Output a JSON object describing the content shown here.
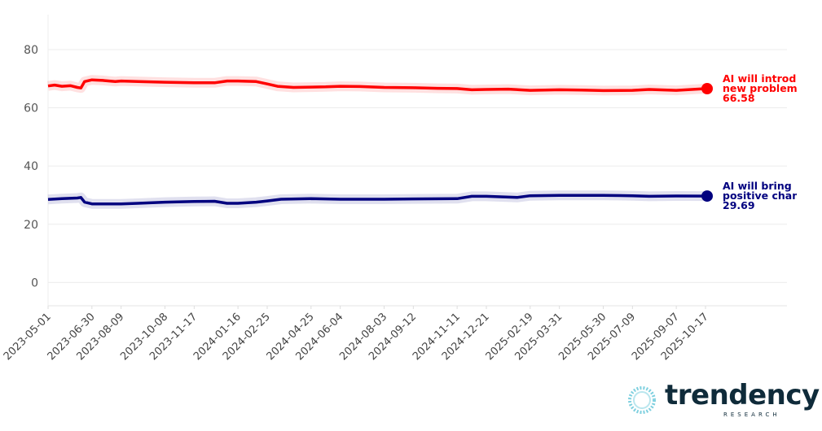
{
  "chart_data": {
    "type": "line",
    "title": "",
    "xlabel": "",
    "ylabel": "",
    "ylim": [
      -8,
      92
    ],
    "yticks": [
      0,
      20,
      40,
      60,
      80
    ],
    "x_tick_labels": [
      "2023-05-01",
      "2023-06-30",
      "2023-08-09",
      "2023-10-08",
      "2023-11-17",
      "2024-01-16",
      "2024-02-25",
      "2024-04-25",
      "2024-06-04",
      "2024-08-03",
      "2024-09-12",
      "2024-11-11",
      "2024-12-21",
      "2025-02-19",
      "2025-03-31",
      "2025-05-30",
      "2025-07-09",
      "2025-09-07",
      "2025-10-17"
    ],
    "x_range": [
      "2023-05-01",
      "2025-10-17"
    ],
    "grid": true,
    "legend": "end-of-line labels",
    "series": [
      {
        "name": "AI will introduce new problems",
        "label_lines": [
          "AI will introdu",
          "new problems"
        ],
        "final_value_label": "66.58",
        "final_value": 66.58,
        "color": "#ff0000",
        "points": [
          [
            "2023-05-01",
            67.5
          ],
          [
            "2023-05-10",
            67.8
          ],
          [
            "2023-05-20",
            67.4
          ],
          [
            "2023-06-01",
            67.6
          ],
          [
            "2023-06-10",
            67.0
          ],
          [
            "2023-06-15",
            66.8
          ],
          [
            "2023-06-20",
            69.0
          ],
          [
            "2023-06-30",
            69.6
          ],
          [
            "2023-07-15",
            69.4
          ],
          [
            "2023-08-01",
            69.0
          ],
          [
            "2023-08-09",
            69.2
          ],
          [
            "2023-09-01",
            69.0
          ],
          [
            "2023-10-08",
            68.8
          ],
          [
            "2023-11-17",
            68.6
          ],
          [
            "2023-12-15",
            68.6
          ],
          [
            "2024-01-01",
            69.2
          ],
          [
            "2024-01-16",
            69.2
          ],
          [
            "2024-02-10",
            69.0
          ],
          [
            "2024-02-25",
            68.2
          ],
          [
            "2024-03-10",
            67.4
          ],
          [
            "2024-04-01",
            67.0
          ],
          [
            "2024-04-25",
            67.1
          ],
          [
            "2024-05-15",
            67.2
          ],
          [
            "2024-06-04",
            67.4
          ],
          [
            "2024-07-01",
            67.3
          ],
          [
            "2024-08-03",
            67.0
          ],
          [
            "2024-09-12",
            66.9
          ],
          [
            "2024-10-15",
            66.7
          ],
          [
            "2024-11-11",
            66.6
          ],
          [
            "2024-12-01",
            66.2
          ],
          [
            "2024-12-21",
            66.3
          ],
          [
            "2025-01-20",
            66.4
          ],
          [
            "2025-02-19",
            66.0
          ],
          [
            "2025-03-31",
            66.2
          ],
          [
            "2025-04-30",
            66.1
          ],
          [
            "2025-05-30",
            65.9
          ],
          [
            "2025-07-09",
            66.0
          ],
          [
            "2025-08-01",
            66.3
          ],
          [
            "2025-09-07",
            66.0
          ],
          [
            "2025-10-17",
            66.58
          ]
        ]
      },
      {
        "name": "AI will bring positive change",
        "label_lines": [
          "AI will bring",
          "positive chan"
        ],
        "final_value_label": "29.69",
        "final_value": 29.69,
        "color": "#00007f",
        "points": [
          [
            "2023-05-01",
            28.5
          ],
          [
            "2023-05-20",
            28.8
          ],
          [
            "2023-06-10",
            29.0
          ],
          [
            "2023-06-15",
            29.2
          ],
          [
            "2023-06-20",
            27.6
          ],
          [
            "2023-06-30",
            27.0
          ],
          [
            "2023-08-09",
            27.0
          ],
          [
            "2023-09-01",
            27.2
          ],
          [
            "2023-10-08",
            27.6
          ],
          [
            "2023-11-17",
            27.8
          ],
          [
            "2023-12-15",
            27.9
          ],
          [
            "2024-01-01",
            27.2
          ],
          [
            "2024-01-16",
            27.2
          ],
          [
            "2024-02-10",
            27.6
          ],
          [
            "2024-02-25",
            28.0
          ],
          [
            "2024-03-15",
            28.6
          ],
          [
            "2024-04-25",
            28.8
          ],
          [
            "2024-06-04",
            28.6
          ],
          [
            "2024-08-03",
            28.6
          ],
          [
            "2024-09-12",
            28.7
          ],
          [
            "2024-11-11",
            28.8
          ],
          [
            "2024-12-01",
            29.6
          ],
          [
            "2024-12-21",
            29.6
          ],
          [
            "2025-02-01",
            29.2
          ],
          [
            "2025-02-19",
            29.8
          ],
          [
            "2025-03-31",
            29.9
          ],
          [
            "2025-05-30",
            29.9
          ],
          [
            "2025-07-09",
            29.8
          ],
          [
            "2025-08-01",
            29.6
          ],
          [
            "2025-09-07",
            29.7
          ],
          [
            "2025-10-17",
            29.69
          ]
        ]
      }
    ]
  },
  "branding": {
    "logo_word": "trendency",
    "logo_sub": "RESEARCH"
  }
}
